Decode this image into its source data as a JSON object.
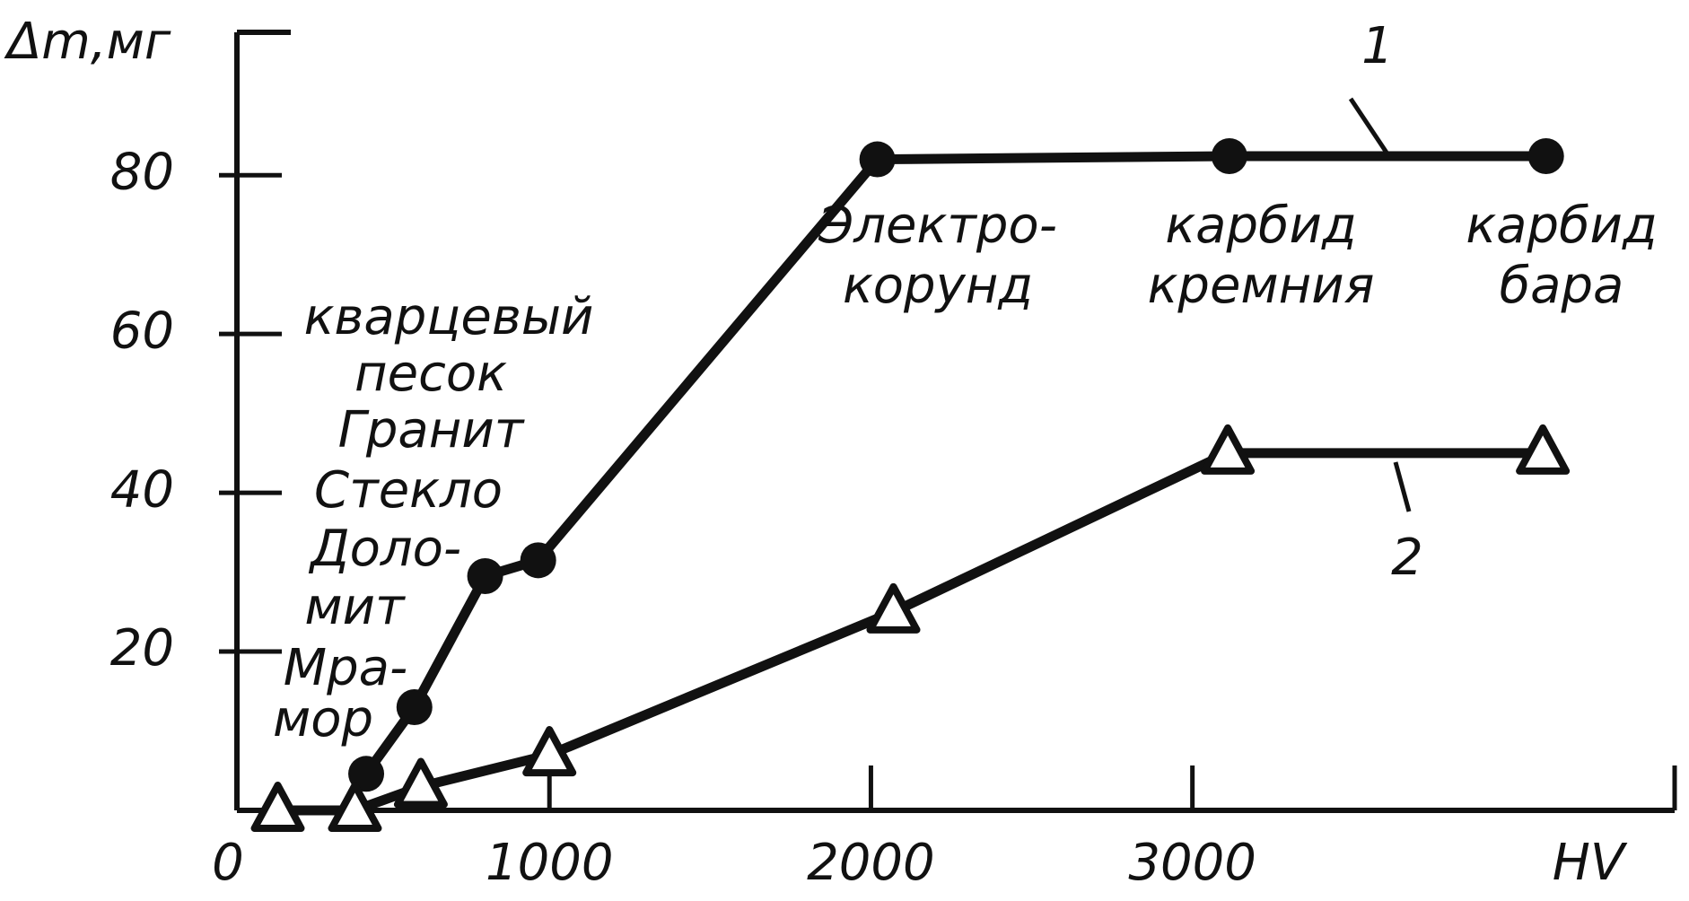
{
  "chart_data": {
    "type": "line",
    "y_label": "Δm,мг",
    "x_label": "HV",
    "xlim": [
      0,
      4500
    ],
    "ylim": [
      0,
      98
    ],
    "xticks": [
      0,
      1000,
      2000,
      3000
    ],
    "yticks": [
      20,
      40,
      60,
      80
    ],
    "series": [
      {
        "name": "1",
        "color": "#111111",
        "marker": "circle",
        "x": [
          430,
          580,
          800,
          965,
          2020,
          3115,
          4100
        ],
        "values": [
          4.6,
          13,
          29.5,
          31.5,
          82,
          82.4,
          82.4
        ]
      },
      {
        "name": "2",
        "color": "#111111",
        "marker": "triangle",
        "x": [
          155,
          395,
          600,
          1000,
          2070,
          3110,
          4090
        ],
        "values": [
          0,
          0,
          3,
          7,
          25,
          45,
          45
        ]
      }
    ],
    "annotations": [
      "Электро-",
      "корунд",
      "карбид",
      "кремния",
      "карбид",
      "бара",
      "кварцевый",
      "песок",
      "Гранит",
      "Стекло",
      "Доло-",
      "мит",
      "Мра-",
      "мор"
    ]
  }
}
